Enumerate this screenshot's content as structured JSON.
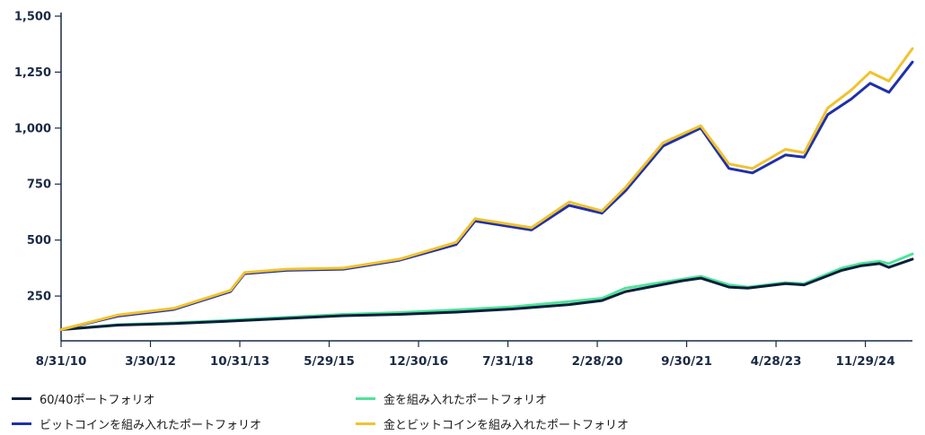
{
  "chart_data": {
    "type": "line",
    "y_ticks": [
      "1,500",
      "1,250",
      "1,000",
      "750",
      "500",
      "250"
    ],
    "y_tick_values": [
      1500,
      1250,
      1000,
      750,
      500,
      250
    ],
    "ylim": [
      50,
      1500
    ],
    "x_ticks": [
      "8/31/10",
      "3/30/12",
      "10/31/13",
      "5/29/15",
      "12/30/16",
      "7/31/18",
      "2/28/20",
      "9/30/21",
      "4/28/23",
      "11/29/24"
    ],
    "xlim": [
      "2010-08",
      "2025-09"
    ],
    "grid": false,
    "legend_position": "bottom",
    "series": [
      {
        "name": "60/40ポートフォリオ",
        "color": "#0b1f3a",
        "x": [
          "2010-08",
          "2011-08",
          "2012-08",
          "2013-08",
          "2014-08",
          "2015-08",
          "2016-08",
          "2017-08",
          "2018-08",
          "2019-08",
          "2020-03",
          "2020-08",
          "2021-08",
          "2021-12",
          "2022-06",
          "2022-10",
          "2023-06",
          "2023-10",
          "2024-06",
          "2024-10",
          "2025-02",
          "2025-04",
          "2025-09"
        ],
        "values": [
          100,
          120,
          127,
          138,
          150,
          162,
          168,
          178,
          192,
          212,
          230,
          270,
          318,
          330,
          290,
          285,
          305,
          300,
          365,
          385,
          395,
          378,
          415
        ]
      },
      {
        "name": "金を組み入れたポートフォリオ",
        "color": "#4ee29a",
        "x": [
          "2010-08",
          "2011-08",
          "2012-08",
          "2013-08",
          "2014-08",
          "2015-08",
          "2016-08",
          "2017-08",
          "2018-08",
          "2019-08",
          "2020-03",
          "2020-08",
          "2021-08",
          "2021-12",
          "2022-06",
          "2022-10",
          "2023-06",
          "2023-10",
          "2024-06",
          "2024-10",
          "2025-02",
          "2025-04",
          "2025-09"
        ],
        "values": [
          100,
          122,
          130,
          142,
          155,
          168,
          176,
          188,
          202,
          225,
          240,
          285,
          325,
          338,
          300,
          290,
          310,
          305,
          375,
          395,
          405,
          395,
          438
        ]
      },
      {
        "name": "ビットコインを組み入れたポートフォリオ",
        "color": "#1e30a8",
        "x": [
          "2010-08",
          "2011-08",
          "2012-08",
          "2013-08",
          "2013-11",
          "2014-08",
          "2015-08",
          "2016-08",
          "2017-08",
          "2017-12",
          "2018-12",
          "2019-08",
          "2020-03",
          "2020-08",
          "2021-04",
          "2021-12",
          "2022-06",
          "2022-11",
          "2023-06",
          "2023-10",
          "2024-03",
          "2024-08",
          "2024-12",
          "2025-04",
          "2025-09"
        ],
        "values": [
          100,
          160,
          190,
          270,
          350,
          365,
          370,
          410,
          480,
          585,
          545,
          655,
          620,
          720,
          920,
          1000,
          820,
          800,
          880,
          870,
          1060,
          1130,
          1200,
          1160,
          1295
        ]
      },
      {
        "name": "金とビットコインを組み入れたポートフォリオ",
        "color": "#f0c22e",
        "x": [
          "2010-08",
          "2011-08",
          "2012-08",
          "2013-08",
          "2013-11",
          "2014-08",
          "2015-08",
          "2016-08",
          "2017-08",
          "2017-12",
          "2018-12",
          "2019-08",
          "2020-03",
          "2020-08",
          "2021-04",
          "2021-12",
          "2022-06",
          "2022-11",
          "2023-06",
          "2023-10",
          "2024-03",
          "2024-08",
          "2024-12",
          "2025-04",
          "2025-09"
        ],
        "values": [
          100,
          165,
          195,
          275,
          355,
          370,
          375,
          415,
          490,
          595,
          555,
          670,
          630,
          735,
          935,
          1010,
          840,
          820,
          905,
          890,
          1090,
          1170,
          1250,
          1210,
          1355
        ]
      }
    ]
  }
}
